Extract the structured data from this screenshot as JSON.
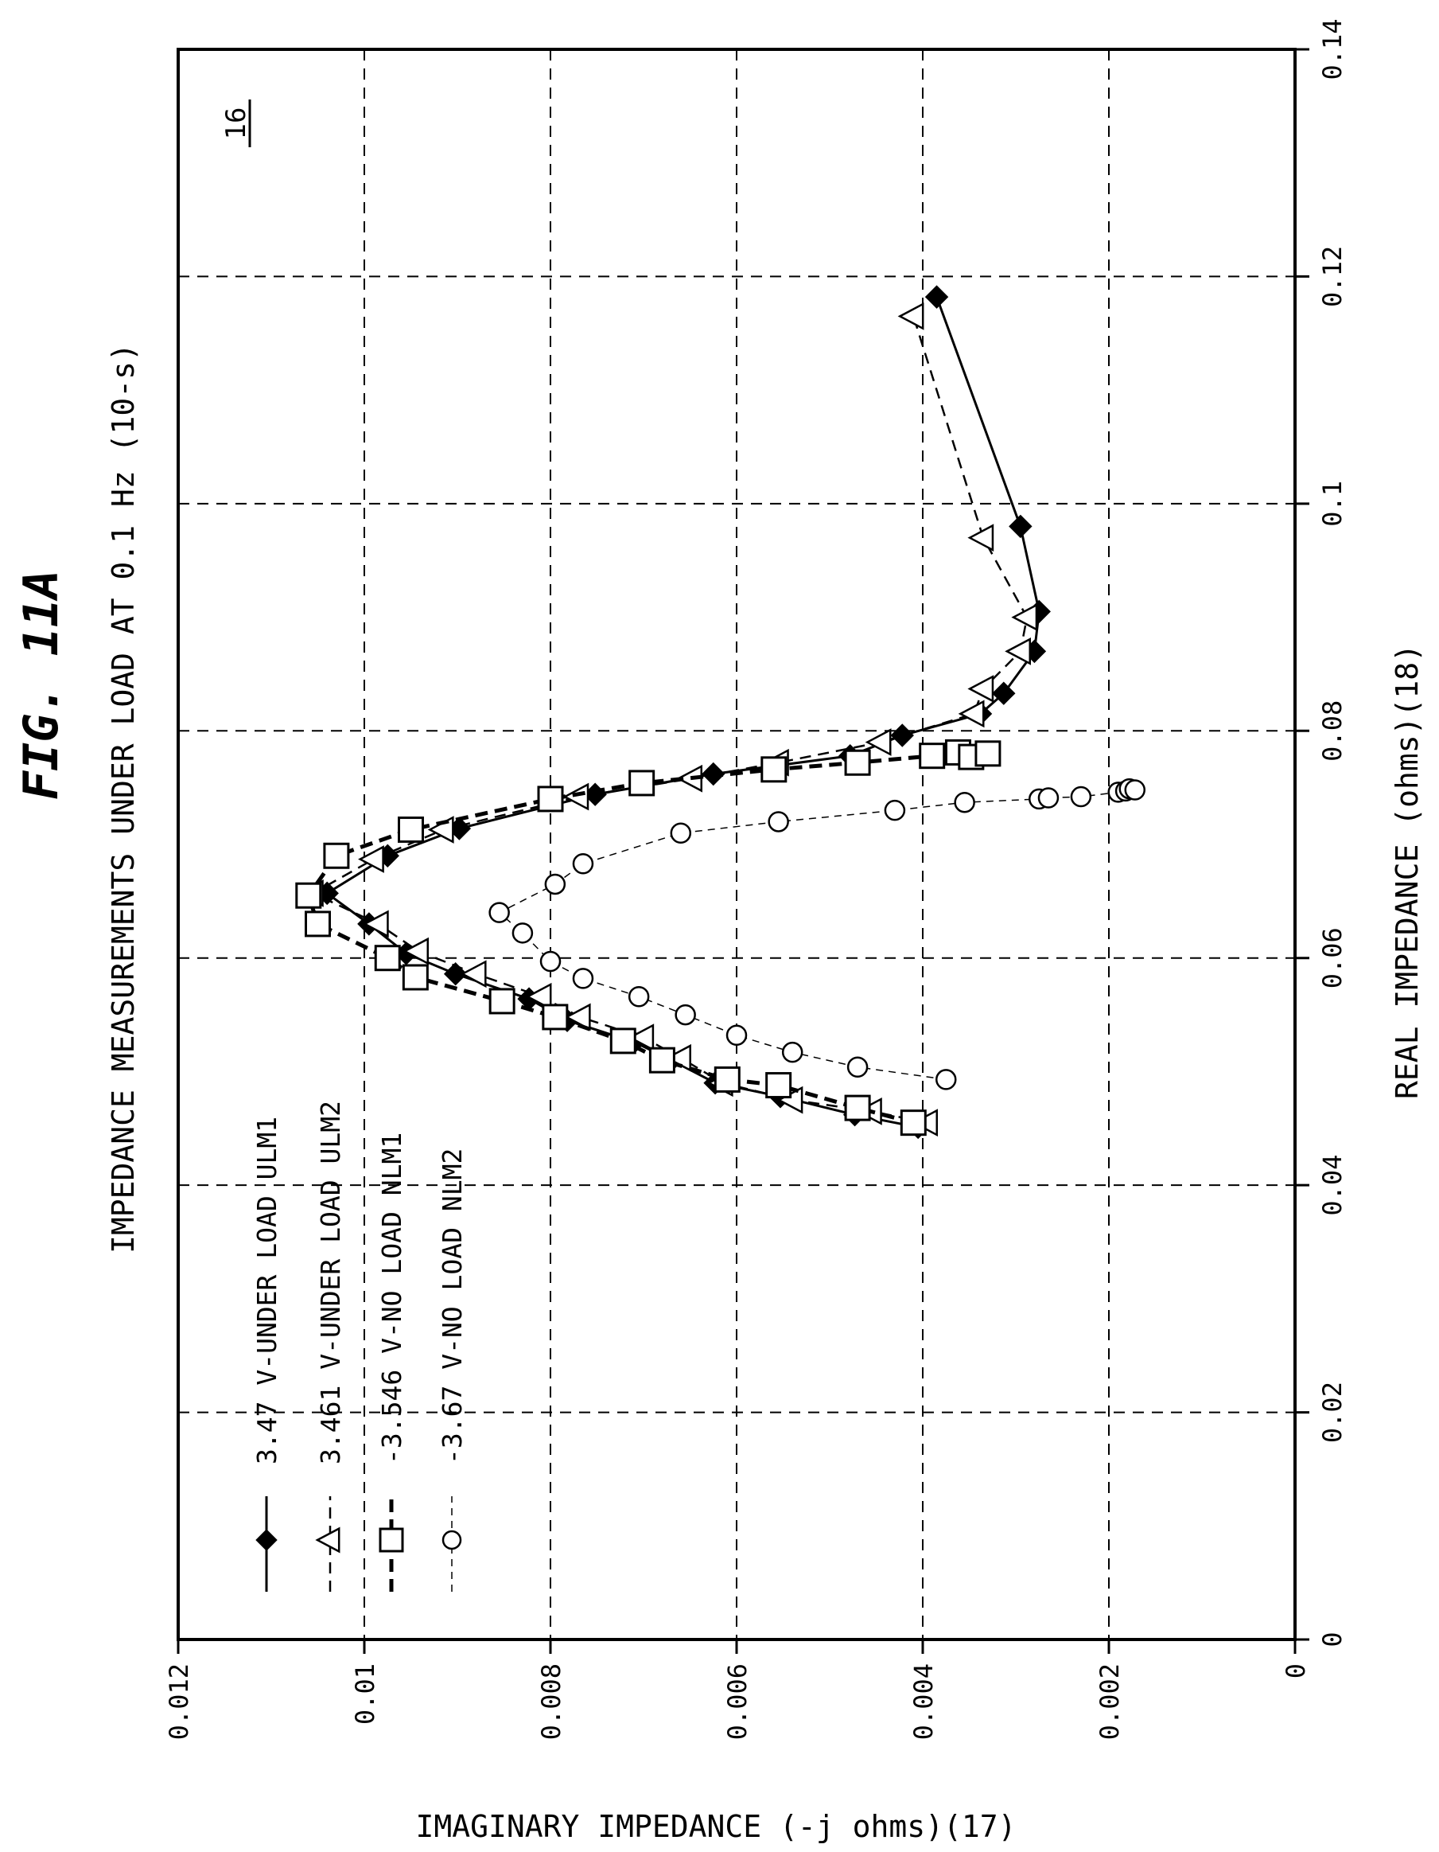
{
  "figure": {
    "title": "FIG. 11A",
    "subtitle": "IMPEDANCE MEASUREMENTS UNDER LOAD AT 0.1 Hz (10-s)",
    "ref": "16"
  },
  "chart_data": {
    "type": "scatter",
    "title": "IMPEDANCE MEASUREMENTS UNDER LOAD AT 0.1 Hz (10-s)",
    "xlabel": "REAL IMPEDANCE (ohms)(18)",
    "ylabel": "IMAGINARY IMPEDANCE (-j ohms)(17)",
    "xlim": [
      0,
      0.14
    ],
    "ylim": [
      0,
      0.012
    ],
    "x_ticks": [
      "0",
      "0.02",
      "0.04",
      "0.06",
      "0.08",
      "0.1",
      "0.12",
      "0.14"
    ],
    "y_ticks": [
      "0",
      "0.002",
      "0.004",
      "0.006",
      "0.008",
      "0.01",
      "0.012"
    ],
    "grid": true,
    "legend_position": "bottom-left",
    "series": [
      {
        "name": "3.47 V-UNDER LOAD ULM1",
        "marker": "diamond",
        "line": "solid",
        "color": "#000000",
        "points": [
          [
            0.0451,
            0.00405
          ],
          [
            0.0462,
            0.00473
          ],
          [
            0.0478,
            0.00553
          ],
          [
            0.049,
            0.00623
          ],
          [
            0.051,
            0.0067
          ],
          [
            0.0526,
            0.0071
          ],
          [
            0.0545,
            0.00782
          ],
          [
            0.0564,
            0.00823
          ],
          [
            0.0586,
            0.00902
          ],
          [
            0.0604,
            0.00955
          ],
          [
            0.063,
            0.00995
          ],
          [
            0.0657,
            0.0104
          ],
          [
            0.069,
            0.00975
          ],
          [
            0.0714,
            0.00898
          ],
          [
            0.0744,
            0.00752
          ],
          [
            0.0762,
            0.00625
          ],
          [
            0.0778,
            0.00478
          ],
          [
            0.0796,
            0.00422
          ],
          [
            0.0815,
            0.00338
          ],
          [
            0.0833,
            0.00313
          ],
          [
            0.087,
            0.0028
          ],
          [
            0.0905,
            0.00275
          ],
          [
            0.098,
            0.00295
          ],
          [
            0.1182,
            0.00385
          ]
        ]
      },
      {
        "name": "3.461 V-UNDER LOAD ULM2",
        "marker": "triangle",
        "line": "dashed",
        "color": "#000000",
        "points": [
          [
            0.0455,
            0.00395
          ],
          [
            0.0465,
            0.00455
          ],
          [
            0.0475,
            0.0054
          ],
          [
            0.049,
            0.00615
          ],
          [
            0.0512,
            0.0066
          ],
          [
            0.053,
            0.007
          ],
          [
            0.0548,
            0.00768
          ],
          [
            0.0566,
            0.0081
          ],
          [
            0.0586,
            0.0088
          ],
          [
            0.0606,
            0.00942
          ],
          [
            0.063,
            0.00985
          ],
          [
            0.0657,
            0.01055
          ],
          [
            0.0687,
            0.0099
          ],
          [
            0.0713,
            0.00915
          ],
          [
            0.0742,
            0.0077
          ],
          [
            0.0758,
            0.00648
          ],
          [
            0.0772,
            0.00555
          ],
          [
            0.079,
            0.00445
          ],
          [
            0.0815,
            0.00345
          ],
          [
            0.0837,
            0.00335
          ],
          [
            0.087,
            0.00295
          ],
          [
            0.09,
            0.00288
          ],
          [
            0.097,
            0.00335
          ],
          [
            0.1165,
            0.0041
          ]
        ]
      },
      {
        "name": "-3.546 V-NO LOAD NLM1",
        "marker": "square",
        "line": "thick-dashed",
        "color": "#000000",
        "points": [
          [
            0.0455,
            0.0041
          ],
          [
            0.0468,
            0.0047
          ],
          [
            0.0488,
            0.00555
          ],
          [
            0.0493,
            0.0061
          ],
          [
            0.051,
            0.0068
          ],
          [
            0.0527,
            0.00722
          ],
          [
            0.0548,
            0.00795
          ],
          [
            0.0562,
            0.00852
          ],
          [
            0.0583,
            0.00945
          ],
          [
            0.06,
            0.00975
          ],
          [
            0.063,
            0.0105
          ],
          [
            0.0655,
            0.0106
          ],
          [
            0.069,
            0.0103
          ],
          [
            0.0713,
            0.0095
          ],
          [
            0.074,
            0.008
          ],
          [
            0.0754,
            0.00702
          ],
          [
            0.0766,
            0.0056
          ],
          [
            0.0772,
            0.0047
          ],
          [
            0.0778,
            0.0039
          ],
          [
            0.0781,
            0.00362
          ],
          [
            0.0777,
            0.00348
          ],
          [
            0.078,
            0.0033
          ]
        ]
      },
      {
        "name": "-3.67 V-NO LOAD NLM2",
        "marker": "circle",
        "line": "thin-dashed",
        "color": "#000000",
        "points": [
          [
            0.0493,
            0.00375
          ],
          [
            0.0504,
            0.0047
          ],
          [
            0.0517,
            0.0054
          ],
          [
            0.0532,
            0.006
          ],
          [
            0.055,
            0.00655
          ],
          [
            0.0566,
            0.00705
          ],
          [
            0.0582,
            0.00765
          ],
          [
            0.0597,
            0.008
          ],
          [
            0.0622,
            0.0083
          ],
          [
            0.064,
            0.00855
          ],
          [
            0.0665,
            0.00795
          ],
          [
            0.0683,
            0.00765
          ],
          [
            0.071,
            0.0066
          ],
          [
            0.072,
            0.00555
          ],
          [
            0.073,
            0.0043
          ],
          [
            0.0737,
            0.00355
          ],
          [
            0.074,
            0.00275
          ],
          [
            0.0741,
            0.00265
          ],
          [
            0.0742,
            0.0023
          ],
          [
            0.0746,
            0.0019
          ],
          [
            0.0747,
            0.00182
          ],
          [
            0.0749,
            0.00178
          ],
          [
            0.0748,
            0.00172
          ]
        ]
      }
    ]
  }
}
